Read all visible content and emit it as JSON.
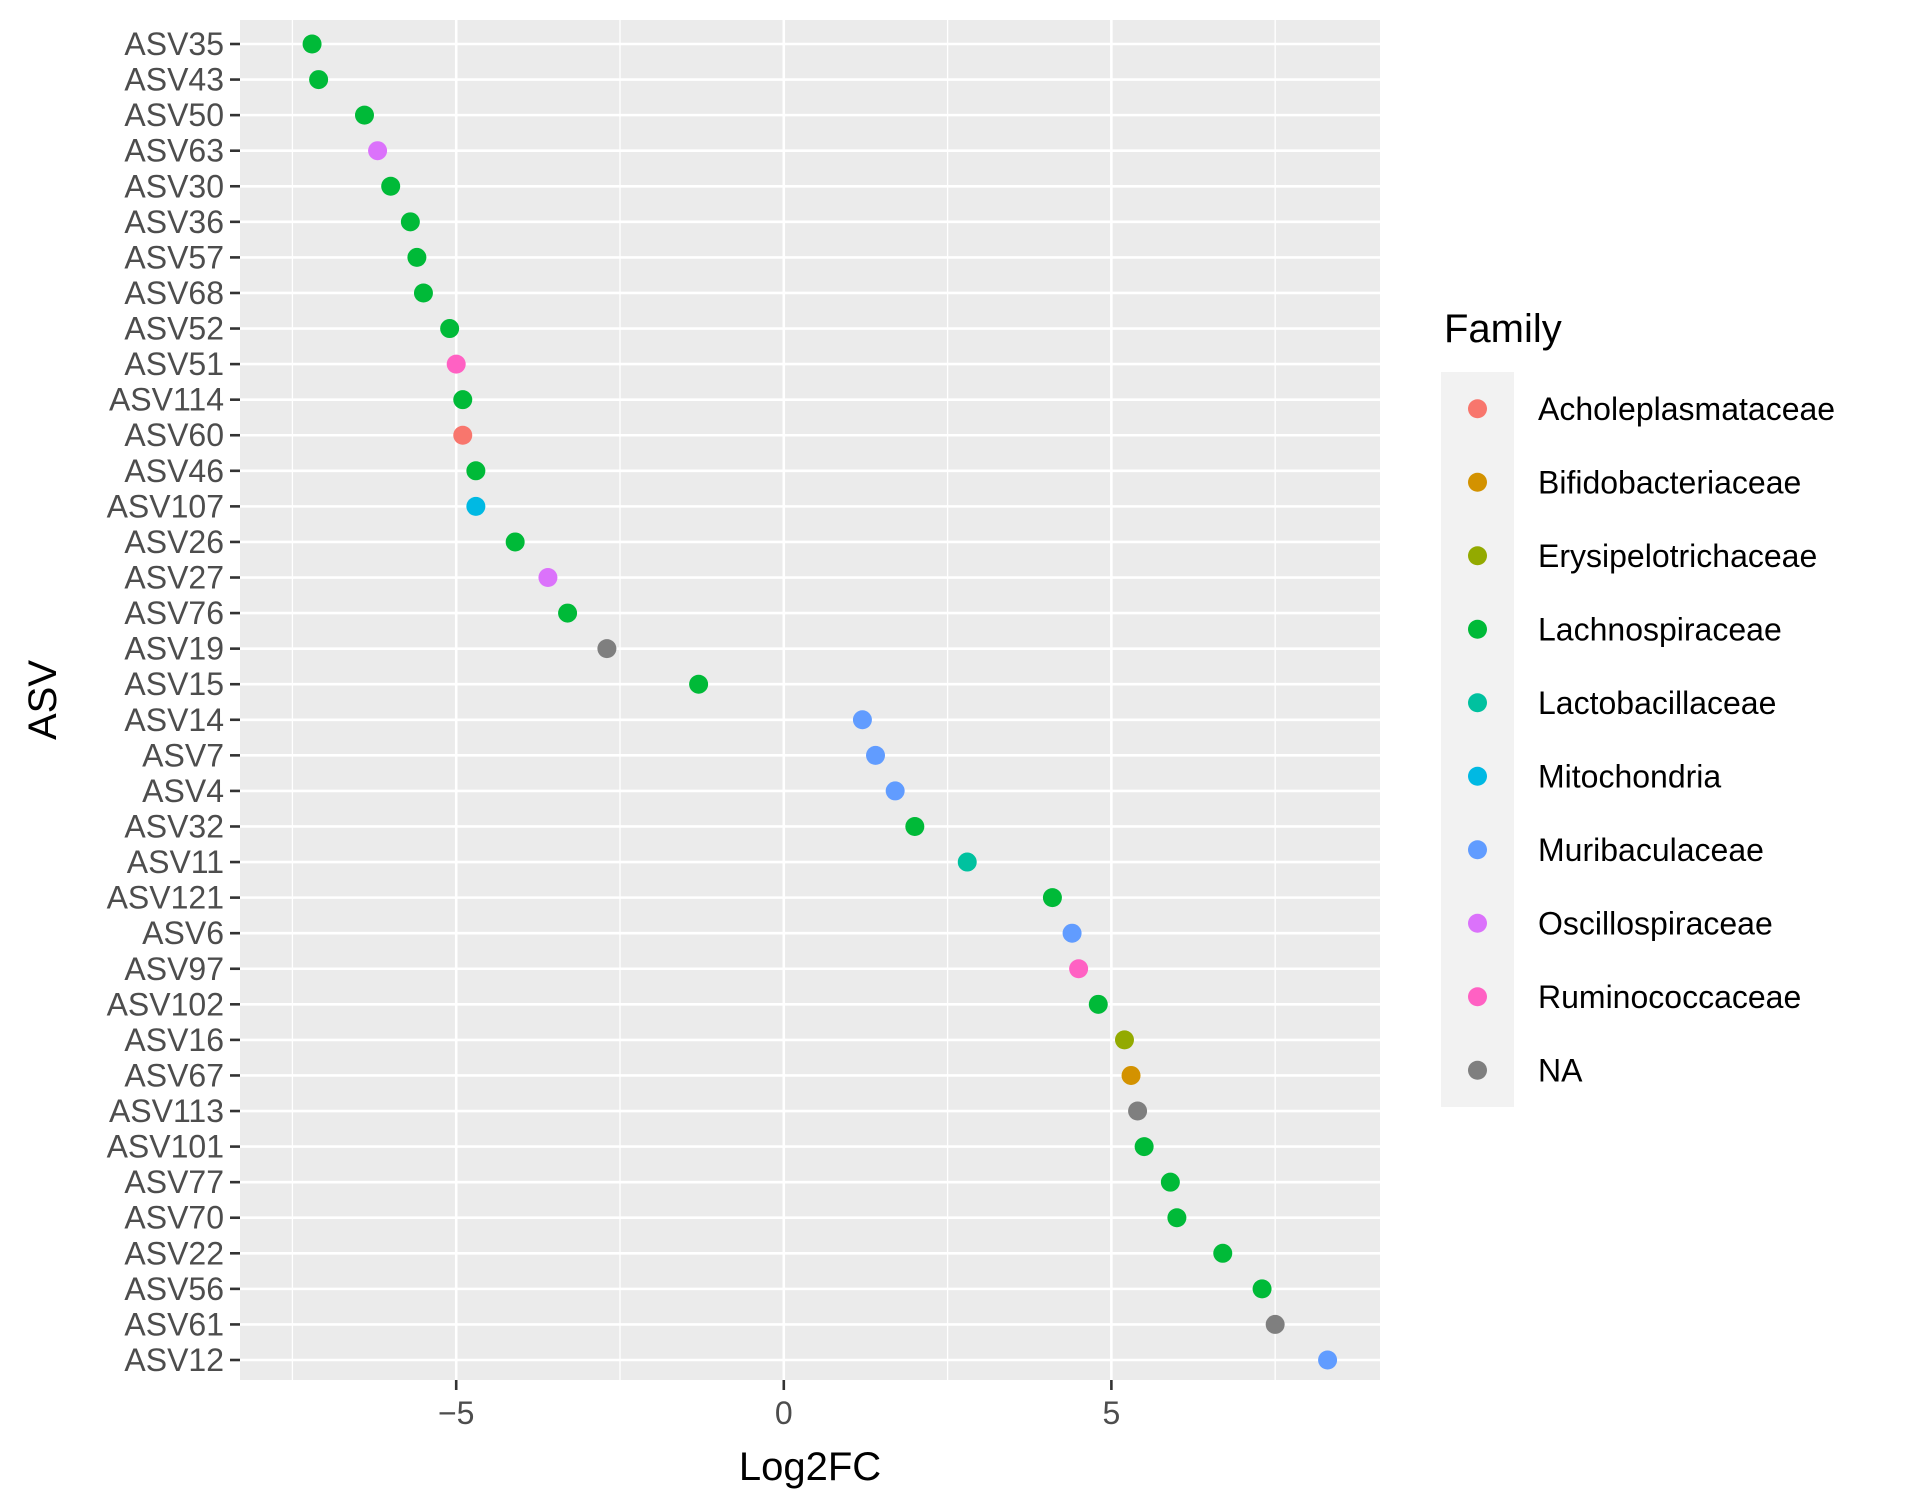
{
  "chart_data": {
    "type": "scatter",
    "title": "",
    "xlabel": "Log2FC",
    "ylabel": "ASV",
    "xlim": [
      -8.3,
      9.1
    ],
    "xticks": [
      -5,
      0,
      5
    ],
    "xtick_labels": [
      "−5",
      "0",
      "5"
    ],
    "grid": true,
    "legend": {
      "title": "Family",
      "placement": "right",
      "entries": [
        {
          "name": "Acholeplasmataceae",
          "color": "#F8766D"
        },
        {
          "name": "Bifidobacteriaceae",
          "color": "#D39200"
        },
        {
          "name": "Erysipelotrichaceae",
          "color": "#93AA00"
        },
        {
          "name": "Lachnospiraceae",
          "color": "#00BA38"
        },
        {
          "name": "Lactobacillaceae",
          "color": "#00C19F"
        },
        {
          "name": "Mitochondria",
          "color": "#00B9E3"
        },
        {
          "name": "Muribaculaceae",
          "color": "#619CFF"
        },
        {
          "name": "Oscillospiraceae",
          "color": "#DB72FB"
        },
        {
          "name": "Ruminococcaceae",
          "color": "#FF61C3"
        },
        {
          "name": "NA",
          "color": "#7F7F7F"
        }
      ]
    },
    "points": [
      {
        "asv": "ASV35",
        "log2fc": -7.2,
        "family": "Lachnospiraceae"
      },
      {
        "asv": "ASV43",
        "log2fc": -7.1,
        "family": "Lachnospiraceae"
      },
      {
        "asv": "ASV50",
        "log2fc": -6.4,
        "family": "Lachnospiraceae"
      },
      {
        "asv": "ASV63",
        "log2fc": -6.2,
        "family": "Oscillospiraceae"
      },
      {
        "asv": "ASV30",
        "log2fc": -6.0,
        "family": "Lachnospiraceae"
      },
      {
        "asv": "ASV36",
        "log2fc": -5.7,
        "family": "Lachnospiraceae"
      },
      {
        "asv": "ASV57",
        "log2fc": -5.6,
        "family": "Lachnospiraceae"
      },
      {
        "asv": "ASV68",
        "log2fc": -5.5,
        "family": "Lachnospiraceae"
      },
      {
        "asv": "ASV52",
        "log2fc": -5.1,
        "family": "Lachnospiraceae"
      },
      {
        "asv": "ASV51",
        "log2fc": -5.0,
        "family": "Ruminococcaceae"
      },
      {
        "asv": "ASV114",
        "log2fc": -4.9,
        "family": "Lachnospiraceae"
      },
      {
        "asv": "ASV60",
        "log2fc": -4.9,
        "family": "Acholeplasmataceae"
      },
      {
        "asv": "ASV46",
        "log2fc": -4.7,
        "family": "Lachnospiraceae"
      },
      {
        "asv": "ASV107",
        "log2fc": -4.7,
        "family": "Mitochondria"
      },
      {
        "asv": "ASV26",
        "log2fc": -4.1,
        "family": "Lachnospiraceae"
      },
      {
        "asv": "ASV27",
        "log2fc": -3.6,
        "family": "Oscillospiraceae"
      },
      {
        "asv": "ASV76",
        "log2fc": -3.3,
        "family": "Lachnospiraceae"
      },
      {
        "asv": "ASV19",
        "log2fc": -2.7,
        "family": "NA"
      },
      {
        "asv": "ASV15",
        "log2fc": -1.3,
        "family": "Lachnospiraceae"
      },
      {
        "asv": "ASV14",
        "log2fc": 1.2,
        "family": "Muribaculaceae"
      },
      {
        "asv": "ASV7",
        "log2fc": 1.4,
        "family": "Muribaculaceae"
      },
      {
        "asv": "ASV4",
        "log2fc": 1.7,
        "family": "Muribaculaceae"
      },
      {
        "asv": "ASV32",
        "log2fc": 2.0,
        "family": "Lachnospiraceae"
      },
      {
        "asv": "ASV11",
        "log2fc": 2.8,
        "family": "Lactobacillaceae"
      },
      {
        "asv": "ASV121",
        "log2fc": 4.1,
        "family": "Lachnospiraceae"
      },
      {
        "asv": "ASV6",
        "log2fc": 4.4,
        "family": "Muribaculaceae"
      },
      {
        "asv": "ASV97",
        "log2fc": 4.5,
        "family": "Ruminococcaceae"
      },
      {
        "asv": "ASV102",
        "log2fc": 4.8,
        "family": "Lachnospiraceae"
      },
      {
        "asv": "ASV16",
        "log2fc": 5.2,
        "family": "Erysipelotrichaceae"
      },
      {
        "asv": "ASV67",
        "log2fc": 5.3,
        "family": "Bifidobacteriaceae"
      },
      {
        "asv": "ASV113",
        "log2fc": 5.4,
        "family": "NA"
      },
      {
        "asv": "ASV101",
        "log2fc": 5.5,
        "family": "Lachnospiraceae"
      },
      {
        "asv": "ASV77",
        "log2fc": 5.9,
        "family": "Lachnospiraceae"
      },
      {
        "asv": "ASV70",
        "log2fc": 6.0,
        "family": "Lachnospiraceae"
      },
      {
        "asv": "ASV22",
        "log2fc": 6.7,
        "family": "Lachnospiraceae"
      },
      {
        "asv": "ASV56",
        "log2fc": 7.3,
        "family": "Lachnospiraceae"
      },
      {
        "asv": "ASV61",
        "log2fc": 7.5,
        "family": "NA"
      },
      {
        "asv": "ASV12",
        "log2fc": 8.3,
        "family": "Muribaculaceae"
      }
    ]
  },
  "style": {
    "panel_background": "#EBEBEB",
    "grid_color": "#FFFFFF",
    "tick_color": "#333333",
    "legend_key_background": "#F2F2F2"
  }
}
